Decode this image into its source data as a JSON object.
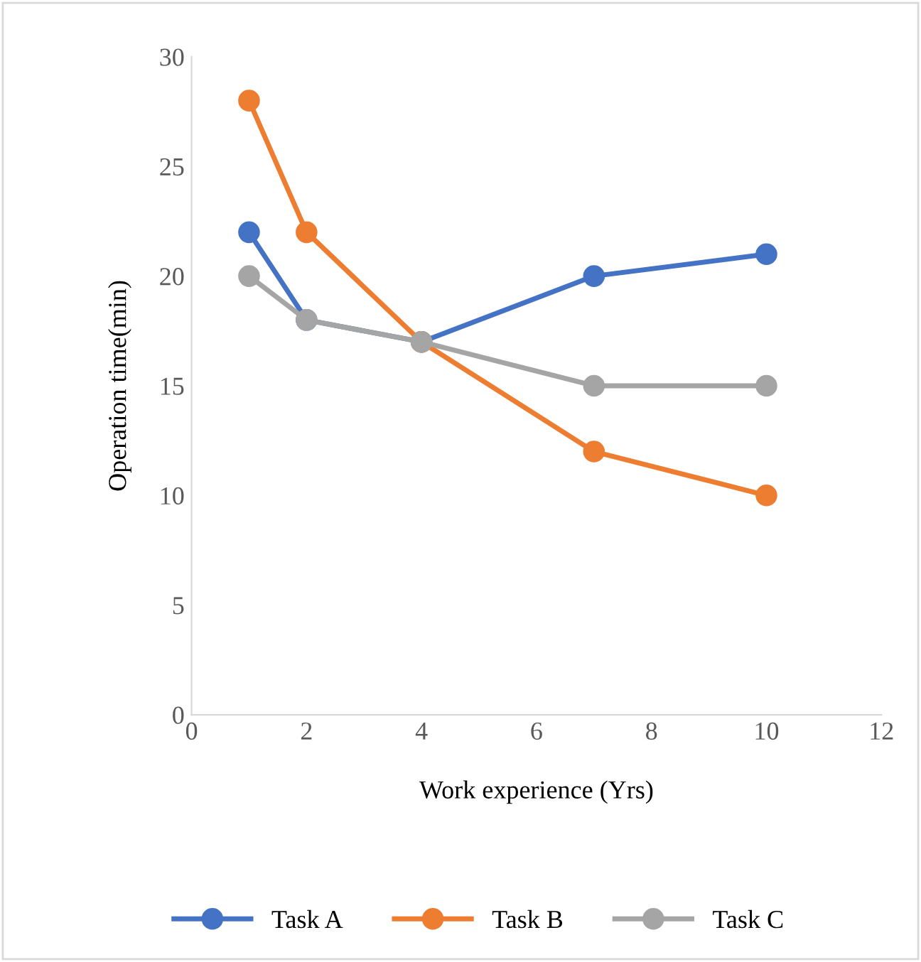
{
  "chart_data": {
    "type": "line",
    "xlabel": "Work experience (Yrs)",
    "ylabel": "Operation time(min)",
    "x": [
      1,
      2,
      4,
      7,
      10
    ],
    "series": [
      {
        "name": "Task A",
        "color": "#4472c4",
        "values": [
          22,
          18,
          17,
          20,
          21
        ]
      },
      {
        "name": "Task B",
        "color": "#ed7d31",
        "values": [
          28,
          22,
          17,
          12,
          10
        ]
      },
      {
        "name": "Task C",
        "color": "#a5a5a5",
        "values": [
          20,
          18,
          17,
          15,
          15
        ]
      }
    ],
    "xlim": [
      0,
      12
    ],
    "xticks": [
      0,
      2,
      4,
      6,
      8,
      10,
      12
    ],
    "ylim": [
      0,
      30
    ],
    "yticks": [
      0,
      5,
      10,
      15,
      20,
      25,
      30
    ],
    "grid": false,
    "legend": "bottom",
    "marker": "circle",
    "line_style": "solid"
  }
}
